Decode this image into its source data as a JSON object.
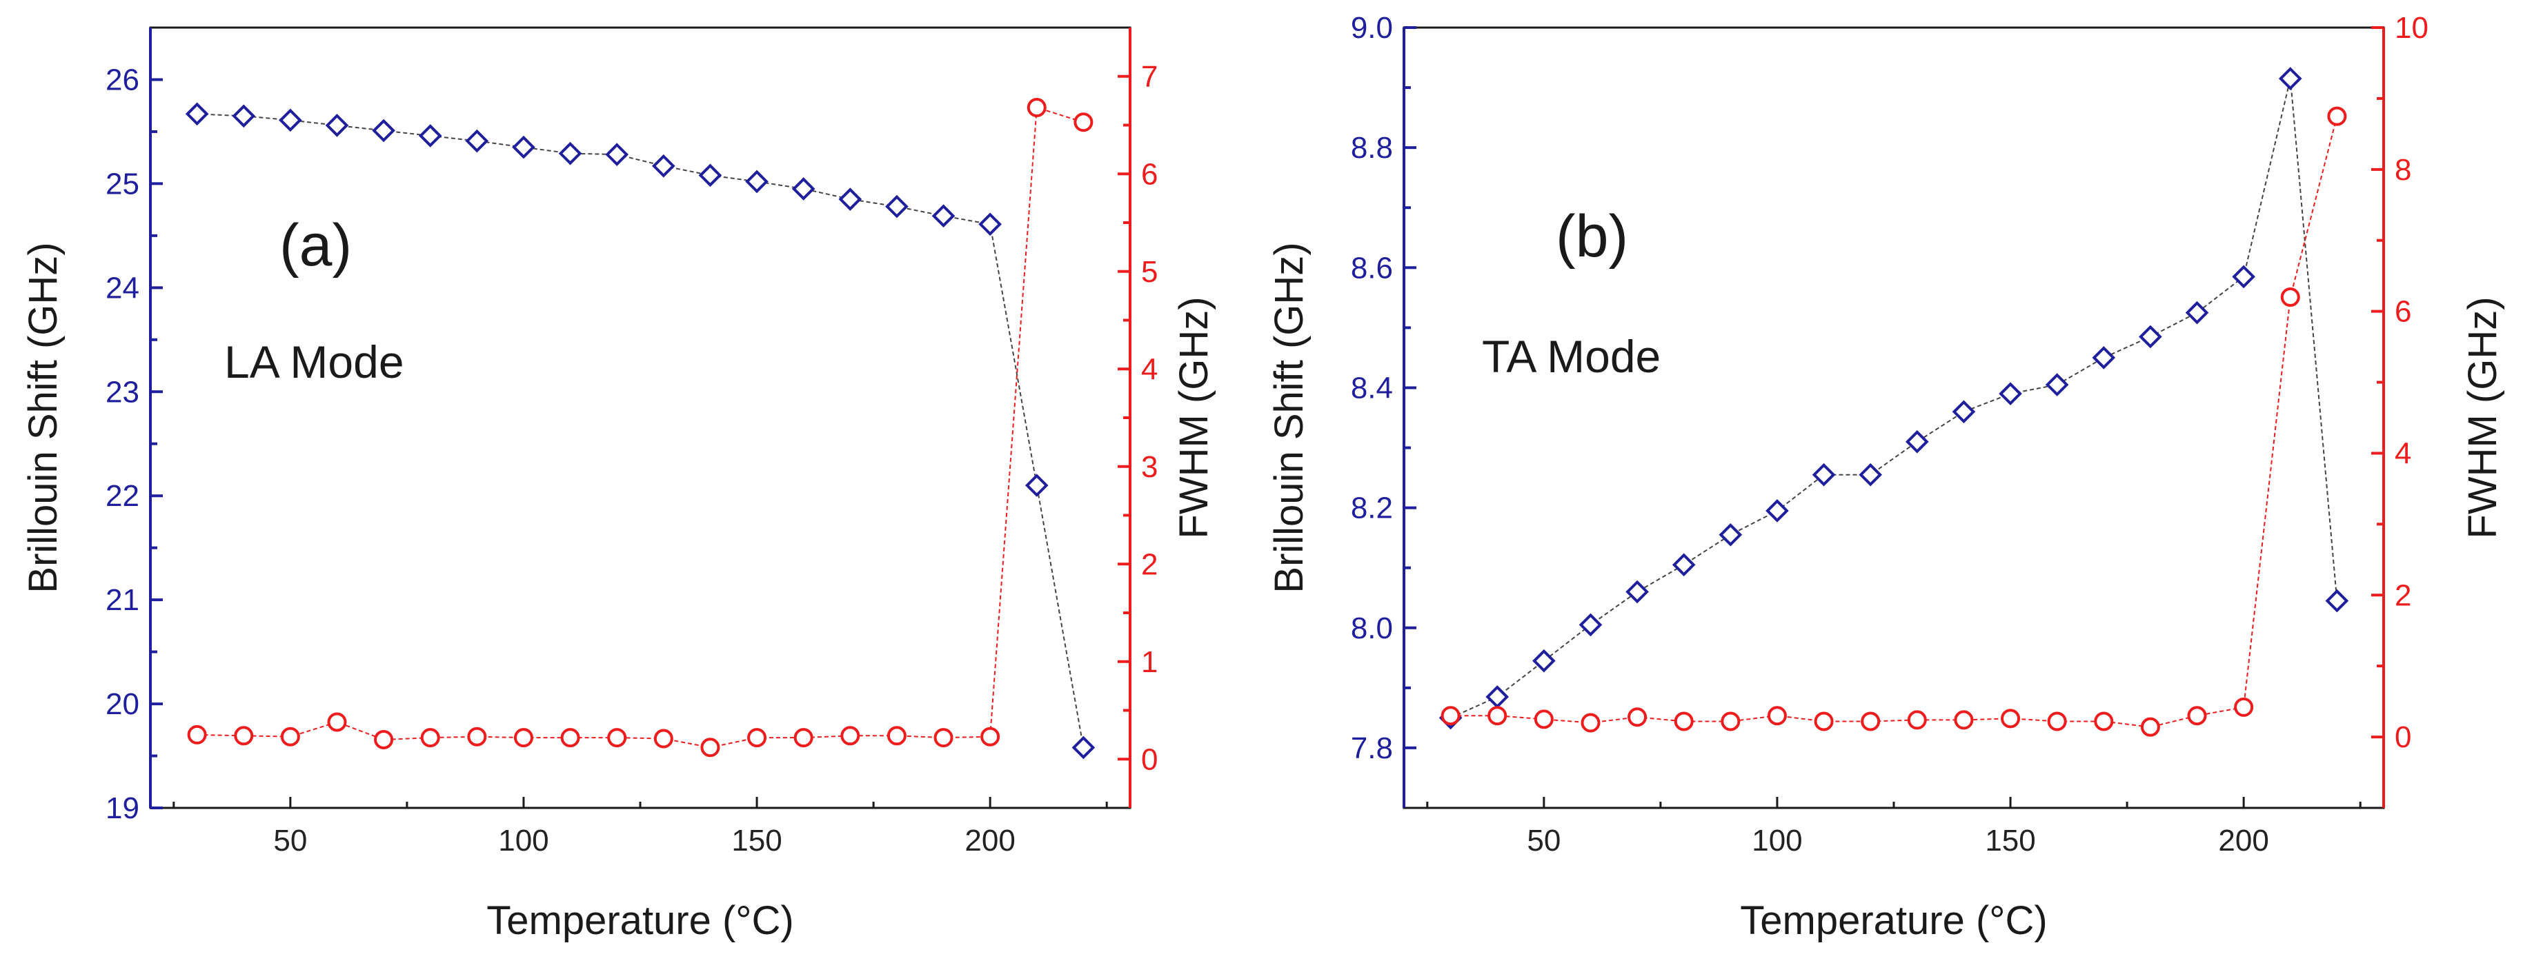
{
  "chart_data": [
    {
      "type": "line",
      "panel_label": "(a)",
      "annotation": "LA Mode",
      "xlabel": "Temperature (°C)",
      "ylabel": "Brillouin Shift (GHz)",
      "y2label": "FWHM (GHz)",
      "xlim": [
        20,
        230
      ],
      "ylim": [
        19,
        26.5
      ],
      "y2lim": [
        -0.5,
        7.5
      ],
      "xticks": [
        50,
        100,
        150,
        200
      ],
      "yticks": [
        19,
        20,
        21,
        22,
        23,
        24,
        25,
        26
      ],
      "y2ticks": [
        0,
        1,
        2,
        3,
        4,
        5,
        6,
        7
      ],
      "x": [
        30,
        40,
        50,
        60,
        70,
        80,
        90,
        100,
        110,
        120,
        130,
        140,
        150,
        160,
        170,
        180,
        190,
        200,
        210,
        220
      ],
      "series": [
        {
          "name": "Brillouin Shift",
          "axis": "left",
          "color": "#1f1f9e",
          "marker": "diamond",
          "values": [
            25.67,
            25.65,
            25.61,
            25.56,
            25.51,
            25.46,
            25.41,
            25.35,
            25.29,
            25.28,
            25.17,
            25.08,
            25.02,
            24.95,
            24.85,
            24.78,
            24.69,
            24.61,
            22.1,
            19.58
          ]
        },
        {
          "name": "FWHM",
          "axis": "right",
          "color": "#ee1c1c",
          "marker": "circle",
          "values": [
            0.25,
            0.24,
            0.23,
            0.38,
            0.2,
            0.22,
            0.23,
            0.22,
            0.22,
            0.22,
            0.21,
            0.12,
            0.22,
            0.22,
            0.24,
            0.24,
            0.22,
            0.23,
            6.68,
            6.53
          ]
        }
      ]
    },
    {
      "type": "line",
      "panel_label": "(b)",
      "annotation": "TA Mode",
      "xlabel": "Temperature (°C)",
      "ylabel": "Brillouin Shift (GHz)",
      "y2label": "FWHM (GHz)",
      "xlim": [
        20,
        230
      ],
      "ylim": [
        7.7,
        9.0
      ],
      "y2lim": [
        -1,
        10
      ],
      "xticks": [
        50,
        100,
        150,
        200
      ],
      "yticks": [
        7.8,
        8.0,
        8.2,
        8.4,
        8.6,
        8.8,
        9.0
      ],
      "y2ticks": [
        0,
        2,
        4,
        6,
        8,
        10
      ],
      "x": [
        30,
        40,
        50,
        60,
        70,
        80,
        90,
        100,
        110,
        120,
        130,
        140,
        150,
        160,
        170,
        180,
        190,
        200,
        210,
        220
      ],
      "series": [
        {
          "name": "Brillouin Shift",
          "axis": "left",
          "color": "#1f1f9e",
          "marker": "diamond",
          "values": [
            7.85,
            7.885,
            7.945,
            8.005,
            8.06,
            8.105,
            8.155,
            8.195,
            8.255,
            8.255,
            8.31,
            8.36,
            8.39,
            8.405,
            8.45,
            8.485,
            8.525,
            8.585,
            8.915,
            8.045
          ]
        },
        {
          "name": "FWHM",
          "axis": "right",
          "color": "#ee1c1c",
          "marker": "circle",
          "values": [
            0.3,
            0.3,
            0.25,
            0.2,
            0.28,
            0.22,
            0.22,
            0.3,
            0.22,
            0.22,
            0.24,
            0.24,
            0.26,
            0.22,
            0.22,
            0.14,
            0.3,
            0.42,
            6.2,
            8.75
          ]
        }
      ]
    }
  ]
}
